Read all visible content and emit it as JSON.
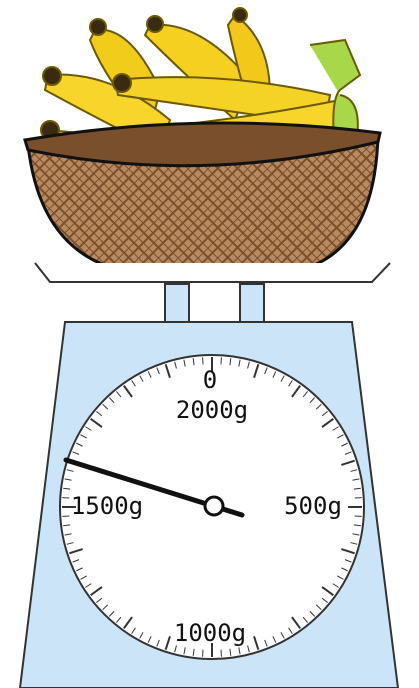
{
  "dial": {
    "labels": {
      "top_zero": "0",
      "top": "2000g",
      "left": "1500g",
      "right": "500g",
      "bottom": "1000g"
    }
  }
}
